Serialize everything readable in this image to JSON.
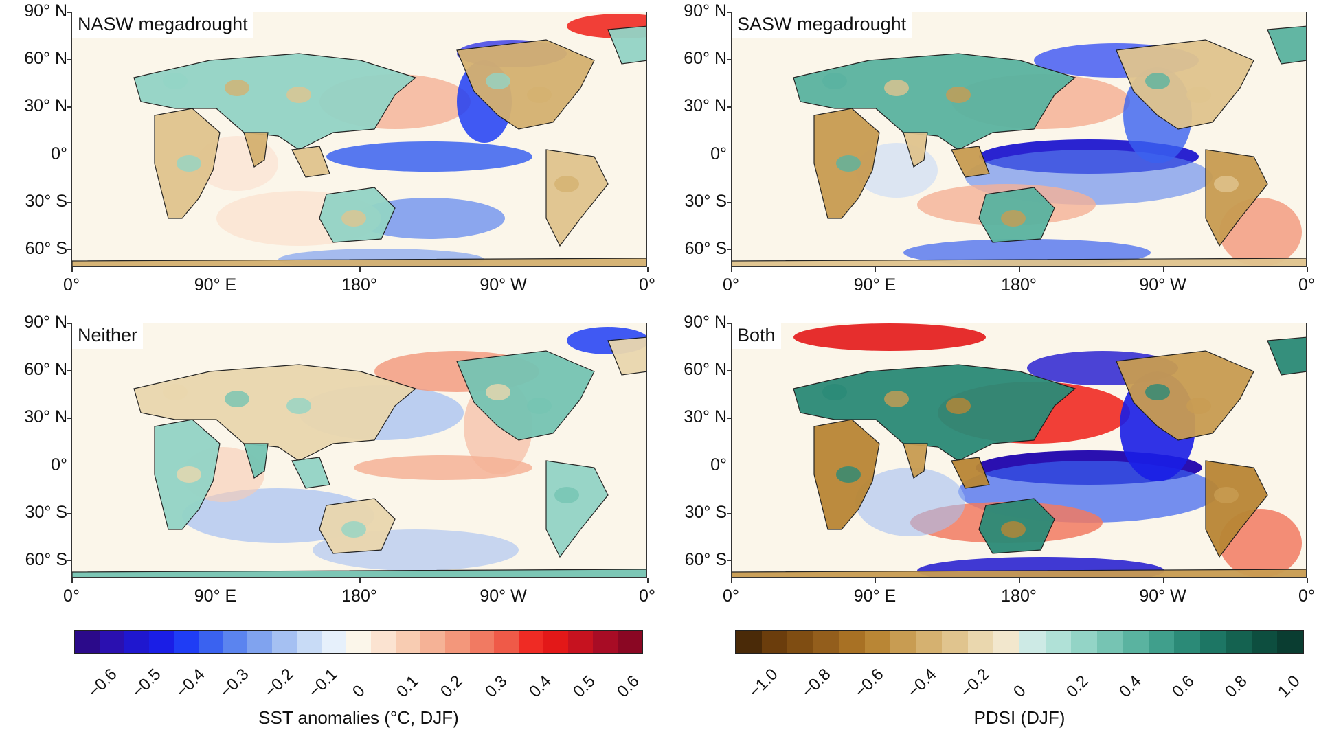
{
  "panels": [
    {
      "label": "NASW megadrought",
      "scenario": "nasw"
    },
    {
      "label": "SASW megadrought",
      "scenario": "sasw"
    },
    {
      "label": "Neither",
      "scenario": "neither"
    },
    {
      "label": "Both",
      "scenario": "both"
    }
  ],
  "lat_ticks": [
    "90° N",
    "60° N",
    "30° N",
    "0°",
    "30° S",
    "60° S"
  ],
  "lon_ticks": [
    "0°",
    "90° E",
    "180°",
    "90° W",
    "0°"
  ],
  "sst_colorbar": {
    "title": "SST anomalies (°C, DJF)",
    "ticks": [
      "−0.6",
      "−0.5",
      "−0.4",
      "−0.3",
      "−0.2",
      "−0.1",
      "0",
      "0.1",
      "0.2",
      "0.3",
      "0.4",
      "0.5",
      "0.6"
    ],
    "colors": [
      "#2b0a8a",
      "#2a10b0",
      "#1f17cf",
      "#1a1ee6",
      "#1f3df5",
      "#3a62f0",
      "#5b84ef",
      "#80a3ef",
      "#a5c0f2",
      "#c8dbf6",
      "#e6f0fb",
      "#fbf6ea",
      "#fbe3d1",
      "#f8ccb2",
      "#f5b296",
      "#f3977b",
      "#f17a62",
      "#ef5a48",
      "#ef2b24",
      "#e31818",
      "#c6121f",
      "#a80c25",
      "#8a0723"
    ]
  },
  "pdsi_colorbar": {
    "title": "PDSI (DJF)",
    "ticks": [
      "−1.0",
      "−0.8",
      "−0.6",
      "−0.4",
      "−0.2",
      "0",
      "0.2",
      "0.4",
      "0.6",
      "0.8",
      "1.0"
    ],
    "colors": [
      "#4a2a08",
      "#6b3d0c",
      "#7f4d12",
      "#935e1c",
      "#a87124",
      "#b98635",
      "#c89c52",
      "#d5b170",
      "#e0c48e",
      "#ead7ae",
      "#f2e7cd",
      "#cdeae5",
      "#b0e1d7",
      "#93d4c6",
      "#76c4b3",
      "#5ab3a0",
      "#409f8c",
      "#2b8a77",
      "#1d7664",
      "#146250",
      "#0d4e3f",
      "#0a3d31"
    ]
  },
  "map_colors": {
    "ocean_neutral": "#f7f3ef",
    "land_outline": "#1a1a1a"
  }
}
